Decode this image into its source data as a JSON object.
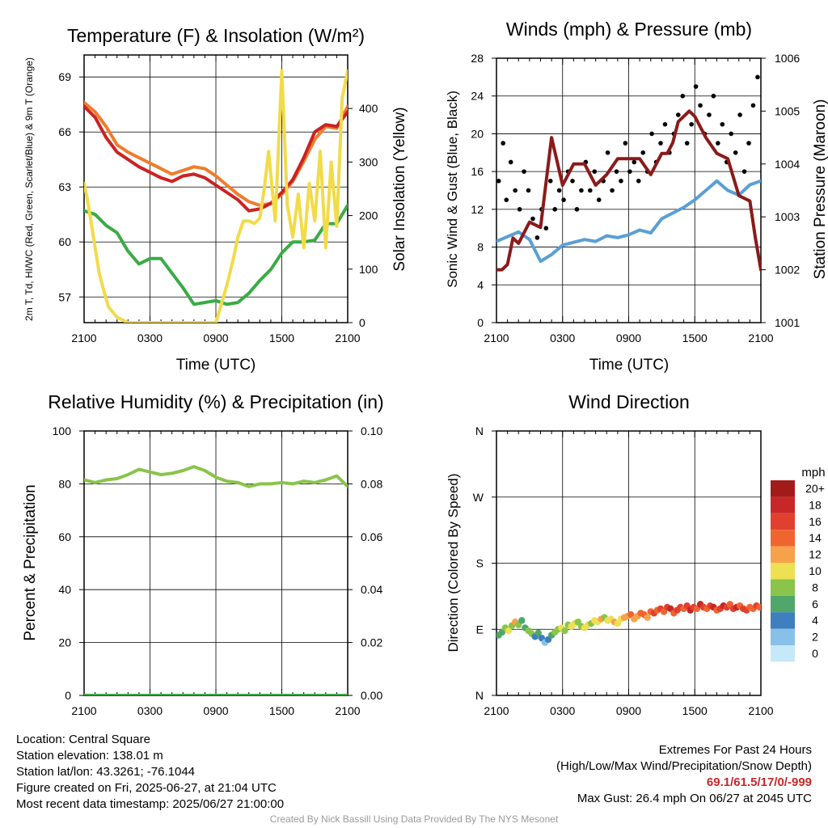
{
  "charts": {
    "temperature": {
      "title": "Temperature (F) & Insolation (W/m²)",
      "xlabel": "Time (UTC)",
      "ylabel_left": "2m T, Td, HI/WC (Red, Green, Scarlet/Blue) & 9m T (Orange)",
      "ylabel_right": "Solar Insolation (Yellow)"
    },
    "winds": {
      "title": "Winds (mph) & Pressure (mb)",
      "xlabel": "Time (UTC)",
      "ylabel_left": "Sonic Wind & Gust (Blue, Black)",
      "ylabel_right": "Station Pressure (Maroon)"
    },
    "humidity": {
      "title": "Relative Humidity (%) & Precipitation (in)",
      "ylabel_left": "Percent & Precipitation"
    },
    "direction": {
      "title": "Wind Direction",
      "ylabel_left": "Direction (Colored By Speed)",
      "legend_unit": "mph"
    }
  },
  "chart_data": [
    {
      "id": "temperature",
      "type": "line",
      "x_ticks": [
        "2100",
        "0300",
        "0900",
        "1500",
        "2100"
      ],
      "yticks_left": [
        57,
        60,
        63,
        66,
        69
      ],
      "ylim_left": [
        55.6,
        70.2
      ],
      "yticks_right": [
        0,
        100,
        200,
        300,
        400
      ],
      "ylim_right": [
        0,
        500
      ],
      "grid": true,
      "series": [
        {
          "axis": "left",
          "color": "#ee7d2c",
          "x": [
            0,
            1,
            2,
            3,
            4,
            5,
            6,
            7,
            8,
            9,
            10,
            11,
            12,
            13,
            14,
            15,
            16,
            17,
            18,
            19,
            20,
            21,
            22,
            23,
            24
          ],
          "values": [
            67.6,
            67.1,
            66.3,
            65.3,
            64.9,
            64.6,
            64.3,
            64.0,
            63.7,
            63.9,
            64.1,
            64.0,
            63.6,
            63.1,
            62.6,
            62.2,
            62.0,
            62.1,
            62.6,
            63.3,
            64.4,
            65.6,
            66.3,
            66.2,
            67.4
          ]
        },
        {
          "axis": "left",
          "color": "#cc2222",
          "x": [
            0,
            1,
            2,
            3,
            4,
            5,
            6,
            7,
            8,
            9,
            10,
            11,
            12,
            13,
            14,
            15,
            16,
            17,
            18,
            19,
            20,
            21,
            22,
            23,
            24
          ],
          "values": [
            67.4,
            66.8,
            65.7,
            64.9,
            64.5,
            64.1,
            63.8,
            63.5,
            63.3,
            63.6,
            63.7,
            63.5,
            63.1,
            62.7,
            62.3,
            61.7,
            61.8,
            62.1,
            62.7,
            63.4,
            64.6,
            66.0,
            66.4,
            66.3,
            67.1
          ]
        },
        {
          "axis": "left",
          "color": "#3aab45",
          "x": [
            0,
            1,
            2,
            3,
            4,
            5,
            6,
            7,
            8,
            9,
            10,
            11,
            12,
            13,
            14,
            15,
            16,
            17,
            18,
            19,
            20,
            21,
            22,
            23,
            24
          ],
          "values": [
            61.7,
            61.5,
            60.9,
            60.5,
            59.5,
            58.8,
            59.1,
            59.1,
            58.3,
            57.5,
            56.6,
            56.7,
            56.8,
            56.6,
            56.7,
            57.2,
            57.9,
            58.5,
            59.4,
            60.0,
            60.0,
            60.1,
            61.0,
            61.0,
            62.0
          ]
        },
        {
          "axis": "right",
          "color": "#f2db4a",
          "x": [
            0,
            0.3,
            0.7,
            1,
            1.4,
            1.8,
            2.2,
            3,
            4,
            6,
            8,
            10,
            12,
            13,
            13.6,
            14,
            14.5,
            15,
            15.5,
            16,
            16.4,
            16.8,
            17.4,
            18,
            18.5,
            19,
            19.5,
            20,
            20.5,
            21,
            21.5,
            22,
            22.5,
            23,
            23.5,
            24
          ],
          "values": [
            260,
            230,
            180,
            140,
            90,
            60,
            30,
            10,
            0,
            0,
            0,
            0,
            0,
            70,
            120,
            160,
            190,
            190,
            185,
            195,
            250,
            320,
            190,
            470,
            220,
            160,
            240,
            140,
            260,
            190,
            320,
            140,
            300,
            180,
            420,
            470
          ]
        }
      ]
    },
    {
      "id": "winds",
      "type": "line",
      "x_ticks": [
        "2100",
        "0300",
        "0900",
        "1500",
        "2100"
      ],
      "yticks_left": [
        0,
        4,
        8,
        12,
        16,
        20,
        24,
        28
      ],
      "ylim_left": [
        0,
        28
      ],
      "yticks_right": [
        1001,
        1002,
        1003,
        1004,
        1005,
        1006
      ],
      "ylim_right": [
        1001,
        1006
      ],
      "grid": true,
      "series": [
        {
          "axis": "left",
          "type": "line",
          "color": "#5a9fd4",
          "x": [
            0,
            1,
            2,
            3,
            4,
            5,
            6,
            7,
            8,
            9,
            10,
            11,
            12,
            13,
            14,
            15,
            16,
            17,
            18,
            19,
            20,
            21,
            22,
            23,
            24
          ],
          "values": [
            8.6,
            9.1,
            9.6,
            8.8,
            6.5,
            7.2,
            8.2,
            8.5,
            8.8,
            8.6,
            9.2,
            9.0,
            9.3,
            9.8,
            9.5,
            11.0,
            11.6,
            12.2,
            13.0,
            14.0,
            15.0,
            14.0,
            13.5,
            14.6,
            15.0
          ]
        },
        {
          "axis": "left",
          "type": "scatter",
          "color": "#000000",
          "x": [
            0.2,
            0.6,
            0.9,
            1.3,
            1.7,
            2.1,
            2.5,
            2.9,
            3.3,
            3.7,
            4.1,
            4.5,
            4.9,
            5.3,
            5.7,
            6.1,
            6.5,
            6.9,
            7.3,
            7.7,
            8.1,
            8.5,
            8.9,
            9.3,
            9.7,
            10.1,
            10.5,
            10.9,
            11.3,
            11.7,
            12.1,
            12.5,
            12.9,
            13.3,
            13.7,
            14.1,
            14.5,
            14.9,
            15.3,
            15.7,
            16.1,
            16.5,
            16.9,
            17.3,
            17.7,
            18.1,
            18.5,
            18.9,
            19.3,
            19.7,
            20.1,
            20.5,
            20.9,
            21.3,
            21.7,
            22.1,
            22.5,
            22.9,
            23.3,
            23.7
          ],
          "values": [
            15,
            19,
            13,
            17,
            14,
            12,
            16,
            14,
            11,
            9,
            12,
            10,
            15,
            12,
            14,
            13,
            16,
            15,
            12,
            14,
            17,
            14,
            16,
            13,
            15,
            18,
            14,
            16,
            15,
            19,
            16,
            17,
            15,
            18,
            16,
            20,
            17,
            19,
            21,
            18,
            20,
            22,
            24,
            19,
            21,
            25,
            23,
            20,
            22,
            24,
            19,
            21,
            17,
            20,
            18,
            22,
            16,
            19,
            23,
            26
          ]
        },
        {
          "axis": "right",
          "type": "line",
          "color": "#8b1a1a",
          "x": [
            0,
            0.5,
            1,
            1.5,
            2,
            3,
            4,
            5,
            6,
            7,
            8,
            9,
            10,
            11,
            12,
            13,
            14,
            14.5,
            15,
            15.5,
            16,
            16.5,
            17,
            17.5,
            18,
            18.5,
            19,
            20,
            21,
            22,
            23,
            23.5,
            24
          ],
          "values": [
            1002.0,
            1002.0,
            1002.1,
            1002.6,
            1002.5,
            1002.9,
            1002.8,
            1004.5,
            1003.6,
            1004.0,
            1004.0,
            1003.6,
            1003.8,
            1004.1,
            1004.1,
            1004.1,
            1003.8,
            1004.0,
            1004.2,
            1004.2,
            1004.4,
            1004.8,
            1004.9,
            1005.0,
            1004.9,
            1004.7,
            1004.5,
            1004.2,
            1004.1,
            1003.4,
            1003.3,
            1002.6,
            1002.0
          ]
        }
      ]
    },
    {
      "id": "humidity",
      "type": "line",
      "x_ticks": [
        "2100",
        "0300",
        "0900",
        "1500",
        "2100"
      ],
      "yticks_left": [
        0,
        20,
        40,
        60,
        80,
        100
      ],
      "ylim_left": [
        0,
        100
      ],
      "yticks_right": [
        "0.00",
        "0.02",
        "0.04",
        "0.06",
        "0.08",
        "0.10"
      ],
      "ylim_right": [
        0,
        0.1
      ],
      "grid": true,
      "series": [
        {
          "axis": "left",
          "color": "#8ac44a",
          "x": [
            0,
            1,
            2,
            3,
            4,
            5,
            6,
            7,
            8,
            9,
            10,
            11,
            12,
            13,
            14,
            15,
            16,
            17,
            18,
            19,
            20,
            21,
            22,
            23,
            24
          ],
          "values": [
            81.5,
            80.5,
            81.5,
            82.0,
            83.5,
            85.5,
            84.5,
            83.5,
            84.0,
            85.0,
            86.5,
            85.0,
            82.5,
            81.0,
            80.5,
            79.0,
            80.0,
            80.0,
            80.5,
            80.0,
            81.0,
            80.5,
            81.5,
            83.0,
            79.0
          ]
        },
        {
          "axis": "right",
          "color": "#3aab45",
          "x": [
            0,
            24
          ],
          "values": [
            0,
            0
          ]
        }
      ]
    },
    {
      "id": "direction",
      "type": "scatter",
      "x_ticks": [
        "2100",
        "0300",
        "0900",
        "1500",
        "2100"
      ],
      "yticks_left": [
        "N",
        "E",
        "S",
        "W",
        "N"
      ],
      "ylim_left": [
        0,
        360
      ],
      "grid": true,
      "legend": {
        "unit": "mph",
        "labels": [
          "20+",
          "18",
          "16",
          "14",
          "12",
          "10",
          "8",
          "6",
          "4",
          "2",
          "0"
        ],
        "colors": [
          "#a11b1b",
          "#c62828",
          "#e2402e",
          "#f0652f",
          "#f7a14a",
          "#ede052",
          "#8ac44a",
          "#4fa86a",
          "#3d7fbf",
          "#88c1e8",
          "#c6e9fa"
        ]
      },
      "points": {
        "x": [
          0.2,
          0.5,
          0.8,
          1.1,
          1.4,
          1.7,
          2.0,
          2.3,
          2.6,
          2.9,
          3.2,
          3.5,
          3.8,
          4.1,
          4.4,
          4.7,
          5.0,
          5.3,
          5.6,
          5.9,
          6.2,
          6.5,
          6.8,
          7.1,
          7.4,
          7.7,
          8.0,
          8.3,
          8.6,
          8.9,
          9.2,
          9.5,
          9.8,
          10.1,
          10.4,
          10.7,
          11.0,
          11.3,
          11.6,
          11.9,
          12.2,
          12.5,
          12.8,
          13.1,
          13.4,
          13.7,
          14.0,
          14.3,
          14.6,
          14.9,
          15.2,
          15.5,
          15.8,
          16.1,
          16.4,
          16.7,
          17.0,
          17.3,
          17.6,
          17.9,
          18.2,
          18.5,
          18.8,
          19.1,
          19.4,
          19.7,
          20.0,
          20.3,
          20.6,
          20.9,
          21.2,
          21.5,
          21.8,
          22.1,
          22.4,
          22.7,
          23.0,
          23.3,
          23.6,
          23.9
        ],
        "values": [
          82,
          86,
          92,
          88,
          95,
          100,
          96,
          102,
          92,
          88,
          84,
          80,
          85,
          78,
          72,
          76,
          82,
          86,
          90,
          92,
          88,
          96,
          94,
          98,
          100,
          94,
          92,
          96,
          98,
          102,
          100,
          104,
          106,
          102,
          104,
          100,
          98,
          104,
          106,
          108,
          110,
          104,
          108,
          112,
          110,
          106,
          114,
          112,
          116,
          118,
          114,
          120,
          118,
          112,
          116,
          120,
          118,
          122,
          116,
          120,
          118,
          124,
          120,
          118,
          122,
          120,
          116,
          118,
          122,
          120,
          124,
          118,
          120,
          122,
          118,
          116,
          120,
          118,
          122,
          120
        ],
        "speeds": [
          6,
          7,
          8,
          10,
          9,
          12,
          8,
          7,
          6,
          8,
          9,
          5,
          6,
          4,
          3,
          5,
          6,
          8,
          9,
          10,
          8,
          9,
          10,
          11,
          9,
          8,
          10,
          11,
          9,
          10,
          11,
          12,
          9,
          10,
          11,
          12,
          10,
          11,
          12,
          13,
          14,
          12,
          13,
          14,
          15,
          13,
          14,
          16,
          15,
          17,
          14,
          16,
          18,
          15,
          17,
          16,
          14,
          16,
          19,
          17,
          15,
          18,
          16,
          14,
          17,
          18,
          15,
          16,
          19,
          17,
          15,
          16,
          18,
          14,
          16,
          17,
          15,
          14,
          16,
          15
        ]
      }
    }
  ],
  "info_left": [
    "Location: Central Square",
    "Station elevation: 138.01 m",
    "Station lat/lon: 43.3261; -76.1044",
    "Figure created on Fri, 2025-06-27, at 21:04 UTC",
    "Most recent data timestamp: 2025/06/27 21:00:00"
  ],
  "extremes": {
    "heading": "Extremes For Past 24 Hours",
    "subheading": "(High/Low/Max Wind/Precipitation/Snow Depth)",
    "values": "69.1/61.5/17/0/-999",
    "max_gust": "Max Gust: 26.4 mph On 06/27 at 2045 UTC"
  },
  "credit": "Created By Nick Bassill Using Data Provided By The NYS Mesonet"
}
